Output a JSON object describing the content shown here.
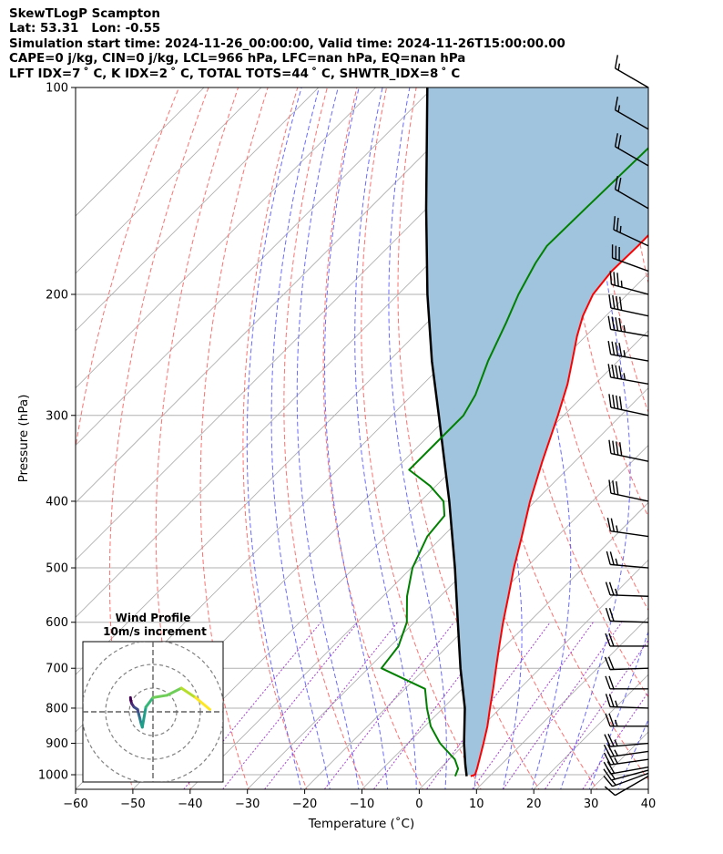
{
  "header": {
    "line1": "SkewTLogP Scampton",
    "line2": "Lat: 53.31   Lon: -0.55",
    "line3": "Simulation start time: 2024-11-26_00:00:00, Valid time: 2024-11-26T15:00:00.00",
    "line4": "CAPE=0 j/kg, CIN=0 j/kg, LCL=966 hPa, LFC=nan hPa, EQ=nan hPa",
    "line5": "LFT IDX=7 ˚ C, K IDX=2 ˚ C, TOTAL TOTS=44 ˚ C, SHWTR_IDX=8 ˚ C"
  },
  "chart_data": {
    "type": "line",
    "title": "SkewTLogP Scampton",
    "xlabel": "Temperature (˚C)",
    "ylabel": "Pressure (hPa)",
    "xlim": [
      -60,
      40
    ],
    "ylim": [
      1050,
      100
    ],
    "y_scale": "log",
    "skew": "45 deg",
    "x_ticks": [
      "−60",
      "−50",
      "−40",
      "−30",
      "−20",
      "−10",
      "0",
      "10",
      "20",
      "30",
      "40"
    ],
    "x_tick_values": [
      -60,
      -50,
      -40,
      -30,
      -20,
      -10,
      0,
      10,
      20,
      30,
      40
    ],
    "y_ticks": [
      "1000",
      "900",
      "800",
      "700",
      "600",
      "500",
      "400",
      "300",
      "200",
      "100"
    ],
    "y_tick_values": [
      1000,
      900,
      800,
      700,
      600,
      500,
      400,
      300,
      200,
      100
    ],
    "grid": true,
    "colors": {
      "temperature": "#ff0000",
      "dewpoint": "#008000",
      "parcel": "#000000",
      "cape_shading": "#a1c4de",
      "dry_adiabats": "#ff6060",
      "moist_adiabats": "#5a5aff",
      "isotherms": "#a9a9a9",
      "mixing_ratio": "#9b2fc9"
    },
    "series": [
      {
        "name": "temperature",
        "pressure": [
          1005,
          1000,
          980,
          950,
          900,
          850,
          800,
          750,
          700,
          650,
          600,
          550,
          500,
          450,
          400,
          350,
          300,
          270,
          250,
          230,
          215,
          200,
          185,
          170,
          150,
          130,
          115,
          100
        ],
        "temperature": [
          6.7,
          7.2,
          6.5,
          5.3,
          3.2,
          0.9,
          -1.8,
          -4.6,
          -7.7,
          -11.0,
          -14.5,
          -18.1,
          -22.1,
          -26.2,
          -30.9,
          -35.7,
          -41.0,
          -44.8,
          -48.0,
          -51.5,
          -54.0,
          -56.0,
          -56.8,
          -56.6,
          -56.7,
          -56.3,
          -55.6,
          -55.2
        ]
      },
      {
        "name": "dewpoint",
        "pressure": [
          1005,
          980,
          950,
          900,
          850,
          800,
          750,
          700,
          650,
          600,
          550,
          500,
          450,
          420,
          400,
          380,
          360,
          330,
          300,
          280,
          250,
          220,
          200,
          180,
          170,
          150,
          120,
          100
        ],
        "temperature": [
          4.0,
          3.2,
          1.0,
          -4.4,
          -9.0,
          -12.8,
          -16.5,
          -27.7,
          -28.6,
          -31.3,
          -35.8,
          -39.8,
          -42.7,
          -43.3,
          -46.0,
          -51.0,
          -57.5,
          -57.5,
          -57.5,
          -59.0,
          -62.7,
          -66.2,
          -69.0,
          -71.5,
          -72.5,
          -72.3,
          -71.8,
          -71.3
        ]
      },
      {
        "name": "parcel",
        "pressure": [
          1005,
          966,
          900,
          800,
          700,
          600,
          500,
          400,
          300,
          250,
          200,
          150,
          100
        ],
        "temperature": [
          6.0,
          3.7,
          -0.2,
          -6.2,
          -13.9,
          -22.4,
          -32.4,
          -45.0,
          -61.8,
          -72.5,
          -84.9,
          -100.1,
          -121.0
        ]
      }
    ],
    "wind_barbs": {
      "pressure": [
        1005,
        995,
        985,
        975,
        950,
        925,
        900,
        850,
        800,
        750,
        700,
        650,
        600,
        550,
        500,
        450,
        400,
        350,
        300,
        270,
        250,
        230,
        215,
        200,
        185,
        170,
        150,
        130,
        115,
        100
      ],
      "speed_kt": [
        10,
        15,
        20,
        20,
        25,
        25,
        25,
        25,
        25,
        20,
        20,
        20,
        20,
        25,
        25,
        25,
        30,
        40,
        40,
        45,
        45,
        45,
        40,
        35,
        30,
        25,
        20,
        20,
        15,
        15
      ],
      "direction_deg": [
        240,
        250,
        255,
        260,
        262,
        262,
        265,
        270,
        272,
        270,
        268,
        270,
        272,
        272,
        275,
        278,
        282,
        282,
        282,
        280,
        280,
        280,
        282,
        285,
        290,
        295,
        300,
        300,
        300,
        300
      ]
    },
    "hodograph": {
      "title": "Wind Profile",
      "subtitle": "10m/s increment",
      "rings_m_s": [
        10,
        20,
        30
      ],
      "u_m_s": [
        -9.5,
        -9.4,
        -9.0,
        -8.0,
        -6.5,
        -6.0,
        -5.5,
        -5.0,
        -4.5,
        -3.0,
        0.0,
        6.0,
        12.0,
        18.0,
        24.0
      ],
      "v_m_s": [
        6.0,
        5.0,
        3.5,
        2.0,
        1.0,
        -1.0,
        -3.0,
        -5.0,
        -6.5,
        2.0,
        6.0,
        7.0,
        10.0,
        6.0,
        1.0
      ]
    }
  }
}
